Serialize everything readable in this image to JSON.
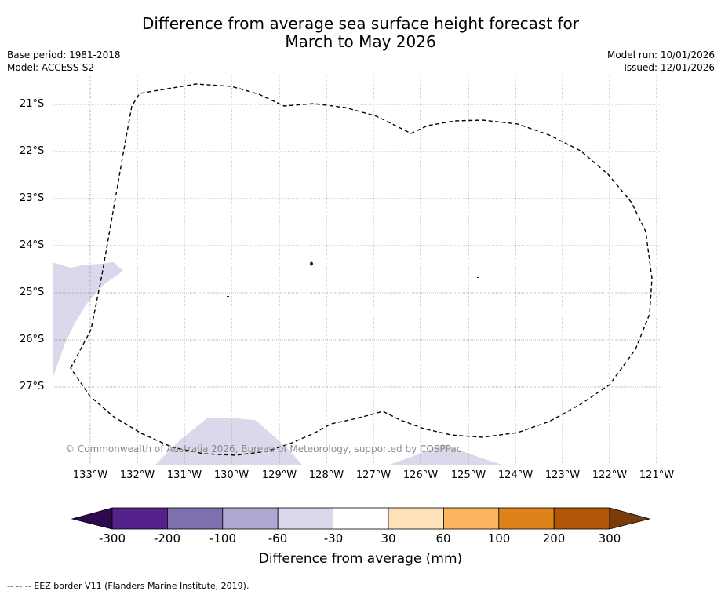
{
  "title_line1": "Difference from average sea surface height forecast for",
  "title_line2": "March to May 2026",
  "meta": {
    "base_period": "Base period: 1981-2018",
    "model": "Model: ACCESS-S2",
    "model_run": "Model run: 10/01/2026",
    "issued": "Issued: 12/01/2026"
  },
  "axes": {
    "lat_labels": [
      "21°S",
      "22°S",
      "23°S",
      "24°S",
      "25°S",
      "26°S",
      "27°S"
    ],
    "lon_labels": [
      "133°W",
      "132°W",
      "131°W",
      "130°W",
      "129°W",
      "128°W",
      "127°W",
      "126°W",
      "125°W",
      "124°W",
      "123°W",
      "122°W",
      "121°W"
    ]
  },
  "copyright": "© Commonwealth of Australia 2026, Bureau of Meteorology, supported by COSPPac",
  "colorbar": {
    "ticks": [
      "-300",
      "-200",
      "-100",
      "-60",
      "-30",
      "30",
      "60",
      "100",
      "200",
      "300"
    ],
    "colors": [
      "#2d0a4e",
      "#54228a",
      "#7e6fae",
      "#afa8d2",
      "#d9d9eb",
      "#ffffff",
      "#fde1b8",
      "#fbb55e",
      "#e0821a",
      "#b05708",
      "#7a3b0c"
    ],
    "label": "Difference from average (mm)"
  },
  "legend_text": "--  --  -- EEZ border V11 (Flanders Marine Institute, 2019)."
}
